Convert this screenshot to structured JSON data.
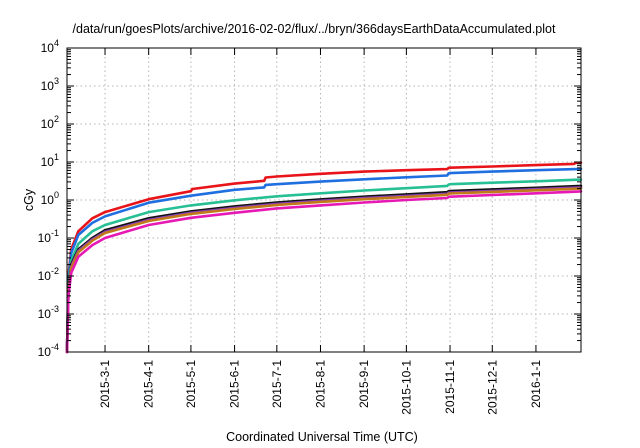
{
  "chart_data": {
    "type": "line",
    "title": "/data/run/goesPlots/archive/2016-02-02/flux/../bryn/366daysEarthDataAccumulated.plot",
    "xlabel": "Coordinated Universal Time (UTC)",
    "ylabel": "cGy",
    "yscale": "log",
    "ylim": [
      0.0001,
      10000
    ],
    "xlim": [
      "2015-02-02",
      "2016-02-02"
    ],
    "grid": true,
    "legend": "none",
    "y_ticks": [
      {
        "base": "10",
        "exp": "-4",
        "value": 0.0001
      },
      {
        "base": "10",
        "exp": "-3",
        "value": 0.001
      },
      {
        "base": "10",
        "exp": "-2",
        "value": 0.01
      },
      {
        "base": "10",
        "exp": "-1",
        "value": 0.1
      },
      {
        "base": "10",
        "exp": "0",
        "value": 1
      },
      {
        "base": "10",
        "exp": "1",
        "value": 10
      },
      {
        "base": "10",
        "exp": "2",
        "value": 100
      },
      {
        "base": "10",
        "exp": "3",
        "value": 1000
      },
      {
        "base": "10",
        "exp": "4",
        "value": 10000
      }
    ],
    "x_ticks": [
      "2015-3-1",
      "2015-4-1",
      "2015-5-1",
      "2015-6-1",
      "2015-7-1",
      "2015-8-1",
      "2015-9-1",
      "2015-10-1",
      "2015-11-1",
      "2015-12-1",
      "2016-1-1"
    ],
    "series": [
      {
        "color": "#e8141a",
        "x": [
          "2015-02-02",
          "2015-02-03",
          "2015-02-05",
          "2015-02-10",
          "2015-02-20",
          "2015-03-01",
          "2015-04-01",
          "2015-05-01",
          "2015-05-02",
          "2015-06-01",
          "2015-06-22",
          "2015-06-23",
          "2015-07-01",
          "2015-08-01",
          "2015-09-01",
          "2015-10-01",
          "2015-10-30",
          "2015-10-31",
          "2015-11-01",
          "2015-12-01",
          "2016-01-01",
          "2016-01-28",
          "2016-01-29",
          "2016-02-02"
        ],
        "y": [
          0.0001,
          0.01,
          0.05,
          0.15,
          0.33,
          0.48,
          1.05,
          1.7,
          1.95,
          2.7,
          3.2,
          3.9,
          4.15,
          4.9,
          5.6,
          6.1,
          6.5,
          7.0,
          7.1,
          7.6,
          8.3,
          8.9,
          9.4,
          9.6
        ]
      },
      {
        "color": "#1f6fe0",
        "x": [
          "2015-02-02",
          "2015-02-03",
          "2015-02-05",
          "2015-02-10",
          "2015-02-20",
          "2015-03-01",
          "2015-04-01",
          "2015-05-01",
          "2015-06-01",
          "2015-06-22",
          "2015-06-23",
          "2015-07-01",
          "2015-08-01",
          "2015-09-01",
          "2015-10-01",
          "2015-10-30",
          "2015-10-31",
          "2015-11-01",
          "2015-12-01",
          "2016-01-01",
          "2016-02-02"
        ],
        "y": [
          0.0001,
          0.008,
          0.04,
          0.12,
          0.25,
          0.37,
          0.85,
          1.3,
          1.85,
          2.15,
          2.5,
          2.6,
          3.05,
          3.5,
          3.95,
          4.4,
          5.0,
          5.1,
          5.6,
          6.1,
          6.6
        ]
      },
      {
        "color": "#27bf94",
        "x": [
          "2015-02-02",
          "2015-02-03",
          "2015-02-05",
          "2015-02-10",
          "2015-02-20",
          "2015-03-01",
          "2015-04-01",
          "2015-05-01",
          "2015-06-01",
          "2015-07-01",
          "2015-08-01",
          "2015-09-01",
          "2015-10-01",
          "2015-10-30",
          "2015-10-31",
          "2015-11-01",
          "2015-12-01",
          "2016-01-01",
          "2016-02-02"
        ],
        "y": [
          0.0001,
          0.006,
          0.025,
          0.07,
          0.15,
          0.22,
          0.48,
          0.72,
          0.98,
          1.25,
          1.5,
          1.78,
          2.05,
          2.35,
          2.55,
          2.6,
          2.85,
          3.1,
          3.45
        ]
      },
      {
        "color": "#111111",
        "x": [
          "2015-02-02",
          "2015-02-03",
          "2015-02-05",
          "2015-02-10",
          "2015-02-20",
          "2015-03-01",
          "2015-04-01",
          "2015-05-01",
          "2015-06-01",
          "2015-07-01",
          "2015-08-01",
          "2015-09-01",
          "2015-10-01",
          "2015-10-30",
          "2015-10-31",
          "2015-11-01",
          "2015-12-01",
          "2016-01-01",
          "2016-02-02"
        ],
        "y": [
          0.0001,
          0.004,
          0.02,
          0.05,
          0.1,
          0.16,
          0.33,
          0.5,
          0.68,
          0.86,
          1.04,
          1.22,
          1.4,
          1.6,
          1.7,
          1.72,
          1.9,
          2.1,
          2.35
        ]
      },
      {
        "color": "#8a3fb8",
        "x": [
          "2015-02-02",
          "2015-02-03",
          "2015-02-05",
          "2015-02-10",
          "2015-02-20",
          "2015-03-01",
          "2015-04-01",
          "2015-05-01",
          "2015-06-01",
          "2015-07-01",
          "2015-08-01",
          "2015-09-01",
          "2015-10-01",
          "2015-10-30",
          "2015-10-31",
          "2015-11-01",
          "2015-12-01",
          "2016-01-01",
          "2016-02-02"
        ],
        "y": [
          0.0001,
          0.0038,
          0.018,
          0.046,
          0.092,
          0.145,
          0.3,
          0.46,
          0.62,
          0.79,
          0.95,
          1.12,
          1.28,
          1.46,
          1.56,
          1.58,
          1.74,
          1.92,
          2.15
        ]
      },
      {
        "color": "#c07a1a",
        "x": [
          "2015-02-02",
          "2015-02-03",
          "2015-02-05",
          "2015-02-10",
          "2015-02-20",
          "2015-03-01",
          "2015-04-01",
          "2015-05-01",
          "2015-06-01",
          "2015-07-01",
          "2015-08-01",
          "2015-09-01",
          "2015-10-01",
          "2015-10-30",
          "2015-10-31",
          "2015-11-01",
          "2015-12-01",
          "2016-01-01",
          "2016-02-02"
        ],
        "y": [
          0.0001,
          0.0035,
          0.016,
          0.042,
          0.085,
          0.135,
          0.28,
          0.43,
          0.58,
          0.74,
          0.89,
          1.05,
          1.2,
          1.37,
          1.46,
          1.48,
          1.63,
          1.8,
          2.0
        ]
      },
      {
        "color": "#e619b5",
        "x": [
          "2015-02-02",
          "2015-02-03",
          "2015-02-05",
          "2015-02-10",
          "2015-02-20",
          "2015-03-01",
          "2015-04-01",
          "2015-05-01",
          "2015-06-01",
          "2015-07-01",
          "2015-08-01",
          "2015-09-01",
          "2015-10-01",
          "2015-10-30",
          "2015-10-31",
          "2015-11-01",
          "2015-12-01",
          "2016-01-01",
          "2016-02-02"
        ],
        "y": [
          0.0001,
          0.003,
          0.012,
          0.032,
          0.065,
          0.1,
          0.22,
          0.34,
          0.46,
          0.6,
          0.72,
          0.86,
          1.0,
          1.13,
          1.2,
          1.22,
          1.35,
          1.5,
          1.68
        ]
      }
    ]
  }
}
